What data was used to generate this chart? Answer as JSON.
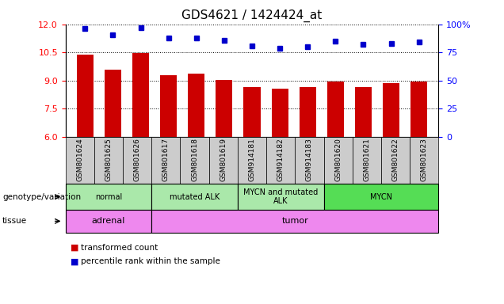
{
  "title": "GDS4621 / 1424424_at",
  "samples": [
    "GSM801624",
    "GSM801625",
    "GSM801626",
    "GSM801617",
    "GSM801618",
    "GSM801619",
    "GSM914181",
    "GSM914182",
    "GSM914183",
    "GSM801620",
    "GSM801621",
    "GSM801622",
    "GSM801623"
  ],
  "bar_values": [
    10.4,
    9.6,
    10.47,
    9.3,
    9.35,
    9.05,
    8.65,
    8.55,
    8.65,
    8.95,
    8.65,
    8.85,
    8.95
  ],
  "dot_values": [
    96,
    91,
    97,
    88,
    88,
    86,
    81,
    79,
    80,
    85,
    82,
    83,
    84
  ],
  "ylim_left": [
    6,
    12
  ],
  "ylim_right": [
    0,
    100
  ],
  "yticks_left": [
    6,
    7.5,
    9,
    10.5,
    12
  ],
  "yticks_right": [
    0,
    25,
    50,
    75,
    100
  ],
  "bar_color": "#cc0000",
  "dot_color": "#0000cc",
  "group_bounds": [
    [
      0,
      3,
      "normal"
    ],
    [
      3,
      6,
      "mutated ALK"
    ],
    [
      6,
      9,
      "MYCN and mutated\nALK"
    ],
    [
      9,
      13,
      "MYCN"
    ]
  ],
  "group_colors": [
    "#aae8aa",
    "#aae8aa",
    "#aae8aa",
    "#55dd55"
  ],
  "tissue_bounds": [
    [
      0,
      3,
      "adrenal"
    ],
    [
      3,
      13,
      "tumor"
    ]
  ],
  "tissue_color": "#ee88ee",
  "genotype_label": "genotype/variation",
  "tissue_label": "tissue",
  "xtick_bg_color": "#cccccc",
  "legend_items": [
    {
      "color": "#cc0000",
      "label": "transformed count"
    },
    {
      "color": "#0000cc",
      "label": "percentile rank within the sample"
    }
  ]
}
